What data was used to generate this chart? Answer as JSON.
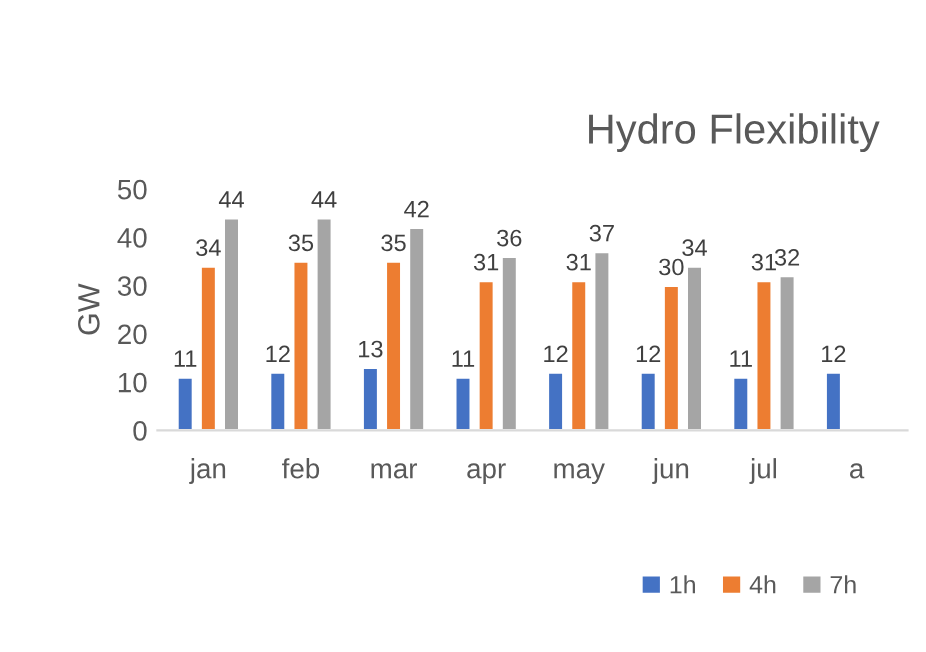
{
  "chart_data": {
    "type": "bar",
    "title": "Hydro Flexibility",
    "ylabel": "GW",
    "categories": [
      "jan",
      "feb",
      "mar",
      "apr",
      "may",
      "jun",
      "jul",
      "a"
    ],
    "series": [
      {
        "name": "1h",
        "color": "#4472c4",
        "values": [
          11,
          12,
          13,
          11,
          12,
          12,
          11,
          12
        ]
      },
      {
        "name": "4h",
        "color": "#ed7d31",
        "values": [
          34,
          35,
          35,
          31,
          31,
          30,
          31,
          null
        ]
      },
      {
        "name": "7h",
        "color": "#a5a5a5",
        "values": [
          44,
          44,
          42,
          36,
          37,
          34,
          32,
          null
        ]
      }
    ],
    "ylim": [
      0,
      50
    ],
    "yticks": [
      0,
      10,
      20,
      30,
      40,
      50
    ],
    "grid": false,
    "legend": "bottom right",
    "data_labels": true
  }
}
